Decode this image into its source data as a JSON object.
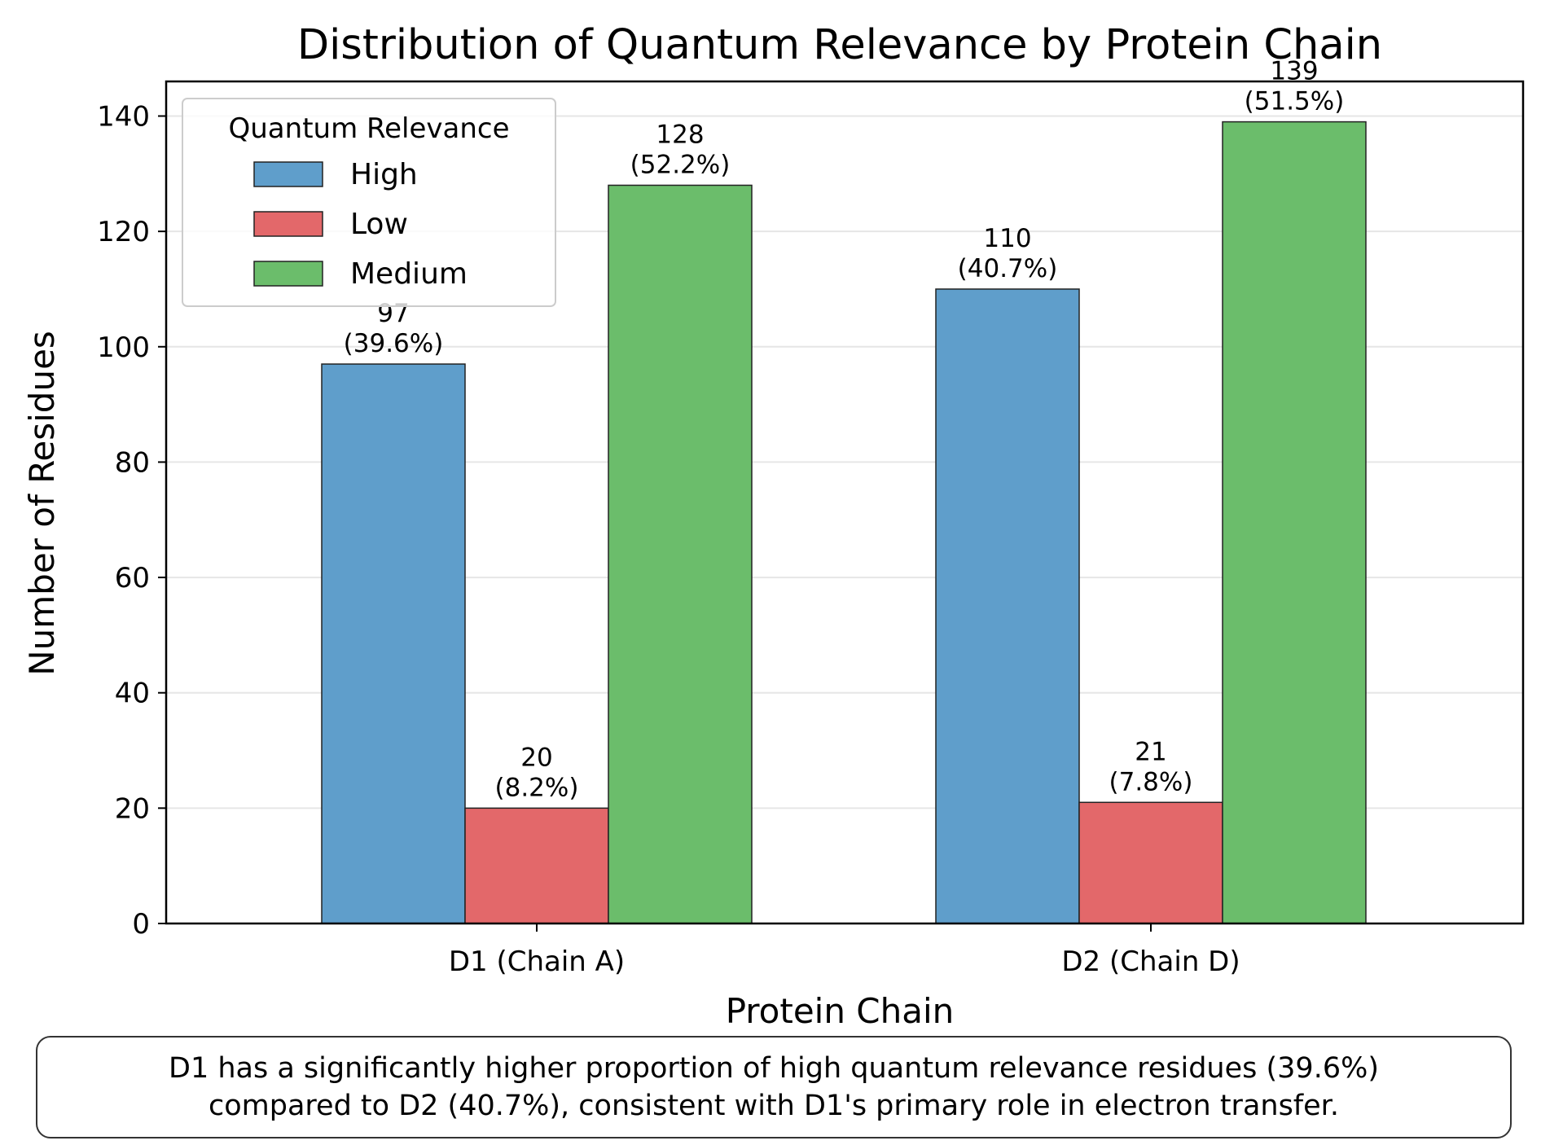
{
  "chart_data": {
    "type": "bar",
    "title": "Distribution of Quantum Relevance by Protein Chain",
    "xlabel": "Protein Chain",
    "ylabel": "Number of Residues",
    "categories": [
      "D1 (Chain A)",
      "D2 (Chain D)"
    ],
    "series": [
      {
        "name": "High",
        "color": "#5f9ecb",
        "values": [
          97,
          110
        ],
        "labels": [
          "97\n(39.6%)",
          "110\n(40.7%)"
        ]
      },
      {
        "name": "Low",
        "color": "#e3686a",
        "values": [
          20,
          21
        ],
        "labels": [
          "20\n(8.2%)",
          "21\n(7.8%)"
        ]
      },
      {
        "name": "Medium",
        "color": "#6bbd6b",
        "values": [
          128,
          139
        ],
        "labels": [
          "128\n(52.2%)",
          "139\n(51.5%)"
        ]
      }
    ],
    "ylim": [
      0,
      146
    ],
    "yticks": [
      0,
      20,
      40,
      60,
      80,
      100,
      120,
      140
    ],
    "grid": "y",
    "legend": {
      "title": "Quantum Relevance",
      "position": "top-left"
    }
  },
  "note": {
    "lines": [
      "D1 has a significantly higher proportion of high quantum relevance residues (39.6%)",
      "compared to D2 (40.7%), consistent with D1's primary role in electron transfer."
    ]
  }
}
